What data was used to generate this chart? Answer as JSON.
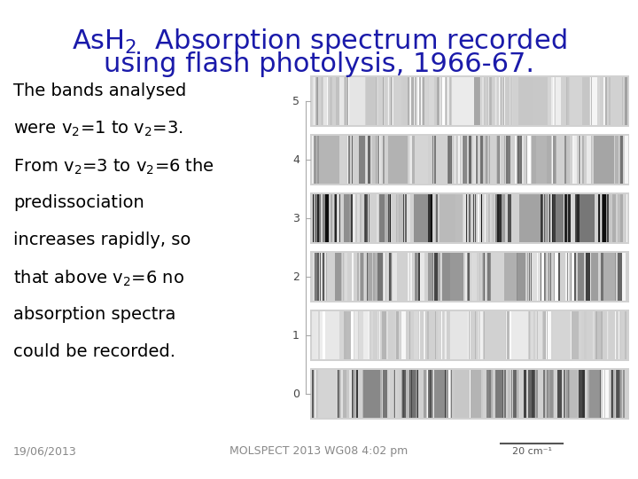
{
  "title_line1": "AsH$_2$  Absorption spectrum recorded",
  "title_line2": "using flash photolysis, 1966-67.",
  "title_color": "#1a1aaa",
  "title_fontsize": 22,
  "body_text_lines": [
    "The bands analysed",
    "were v$_2$=1 to v$_2$=3.",
    "From v$_2$=3 to v$_2$=6 the",
    "predissociation",
    "increases rapidly, so",
    "that above v$_2$=6 no",
    "absorption spectra",
    "could be recorded."
  ],
  "body_fontsize": 14,
  "body_color": "#000000",
  "footer_left": "19/06/2013",
  "footer_center": "MOLSPECT 2013 WG08 4:02 pm",
  "footer_fontsize": 9,
  "footer_color": "#888888",
  "bg_color": "#ffffff",
  "band_labels": [
    "5",
    "4",
    "3",
    "2",
    "1",
    "0"
  ],
  "band_darkness": [
    0.25,
    0.4,
    0.65,
    0.5,
    0.2,
    0.55
  ],
  "scale_bar_label": "20 cm⁻¹"
}
